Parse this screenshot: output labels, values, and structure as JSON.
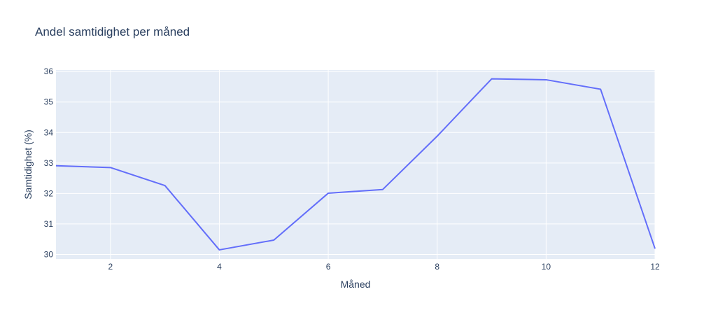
{
  "chart_data": {
    "type": "line",
    "title": "Andel samtidighet per måned",
    "xlabel": "Måned",
    "ylabel": "Samtidighet (%)",
    "xlim": [
      1,
      12
    ],
    "ylim": [
      29.85,
      36.05
    ],
    "x_ticks": [
      2,
      4,
      6,
      8,
      10,
      12
    ],
    "y_ticks": [
      30,
      31,
      32,
      33,
      34,
      35,
      36
    ],
    "grid": true,
    "plot_background": "#e5ecf6",
    "gridline_color": "#ffffff",
    "series": [
      {
        "color": "#636efa",
        "x": [
          1,
          2,
          3,
          4,
          5,
          6,
          7,
          8,
          9,
          10,
          11,
          12
        ],
        "y": [
          32.91,
          32.85,
          32.26,
          30.15,
          30.47,
          32.01,
          32.13,
          33.88,
          35.76,
          35.73,
          35.42,
          30.19
        ]
      }
    ]
  }
}
